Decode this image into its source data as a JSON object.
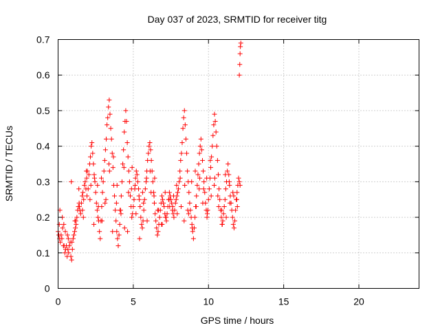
{
  "chart_data": {
    "type": "scatter",
    "title": "Day 037 of 2023, SRMTID for receiver titg",
    "xlabel": "GPS time / hours",
    "ylabel": "SRMTID / TECUs",
    "xlim": [
      0,
      24
    ],
    "ylim": [
      0,
      0.7
    ],
    "xticks": [
      0,
      5,
      10,
      15,
      20
    ],
    "yticks": [
      0,
      0.1,
      0.2,
      0.3,
      0.4,
      0.5,
      0.6,
      0.7
    ],
    "xtick_labels": [
      "0",
      "5",
      "10",
      "15",
      "20"
    ],
    "ytick_labels": [
      "0",
      "0.1",
      "0.2",
      "0.3",
      "0.4",
      "0.5",
      "0.6",
      "0.7"
    ],
    "grid": true,
    "marker": "plus",
    "color": "#ff0000",
    "series": [
      {
        "name": "titg",
        "x": [
          0.0,
          0.1,
          0.2,
          0.3,
          0.4,
          0.5,
          0.6,
          0.7,
          0.8,
          0.9,
          1.0,
          1.1,
          1.2,
          1.3,
          1.4,
          1.5,
          1.6,
          1.7,
          1.8,
          1.9,
          2.0,
          2.1,
          2.2,
          2.3,
          2.4,
          2.5,
          2.6,
          2.7,
          2.8,
          2.9,
          3.0,
          3.1,
          3.2,
          3.3,
          3.4,
          3.5,
          3.6,
          3.7,
          3.8,
          3.9,
          4.0,
          4.1,
          4.2,
          4.3,
          4.4,
          4.5,
          4.6,
          4.7,
          4.8,
          4.9,
          5.0,
          5.1,
          5.2,
          5.3,
          5.4,
          5.5,
          5.6,
          5.7,
          5.8,
          5.9,
          6.0,
          6.1,
          6.2,
          6.3,
          6.4,
          6.5,
          6.6,
          6.7,
          6.8,
          6.9,
          7.0,
          7.1,
          7.2,
          7.3,
          7.4,
          7.5,
          7.6,
          7.7,
          7.8,
          7.9,
          8.0,
          8.1,
          8.2,
          8.3,
          8.4,
          8.5,
          8.6,
          8.7,
          8.8,
          8.9,
          9.0,
          9.1,
          9.2,
          9.3,
          9.4,
          9.5,
          9.6,
          9.7,
          9.8,
          9.9,
          10.0,
          10.1,
          10.2,
          10.3,
          10.4,
          10.5,
          10.6,
          10.7,
          10.8,
          10.9,
          11.0,
          11.1,
          11.2,
          11.3,
          11.4,
          11.5,
          11.6,
          11.7,
          11.8,
          11.9,
          12.0,
          12.1,
          0.05,
          0.15,
          0.25,
          0.35,
          0.45,
          0.55,
          0.65,
          0.75,
          0.85,
          0.95,
          1.05,
          1.15,
          1.25,
          1.35,
          1.45,
          1.55,
          1.65,
          1.75,
          1.85,
          1.95,
          2.05,
          2.15,
          2.25,
          2.35,
          2.45,
          2.55,
          2.65,
          2.75,
          2.85,
          2.95,
          3.05,
          3.15,
          3.25,
          3.35,
          3.45,
          3.55,
          3.65,
          3.75,
          3.85,
          3.95,
          4.05,
          4.15,
          4.25,
          4.35,
          4.45,
          4.55,
          4.65,
          4.75,
          4.85,
          4.95,
          5.05,
          5.15,
          5.25,
          5.35,
          5.45,
          5.55,
          5.65,
          5.75,
          5.85,
          5.95,
          6.05,
          6.15,
          6.25,
          6.35,
          6.45,
          6.55,
          6.65,
          6.75,
          6.85,
          6.95,
          7.05,
          7.15,
          7.25,
          7.35,
          7.45,
          7.55,
          7.65,
          7.75,
          7.85,
          7.95,
          8.05,
          8.15,
          8.25,
          8.35,
          8.45,
          8.55,
          8.65,
          8.75,
          8.85,
          8.95,
          9.05,
          9.15,
          9.25,
          9.35,
          9.45,
          9.55,
          9.65,
          9.75,
          9.85,
          9.95,
          10.05,
          10.15,
          10.25,
          10.35,
          10.45,
          10.55,
          10.65,
          10.75,
          10.85,
          10.95,
          11.05,
          11.15,
          11.25,
          11.35,
          11.45,
          11.55,
          11.65,
          11.75,
          11.85,
          11.95,
          12.05,
          0.12,
          0.38,
          0.62,
          0.88,
          1.12,
          1.38,
          1.62,
          1.88,
          2.12,
          2.38,
          2.62,
          2.88,
          3.12,
          3.38,
          3.62,
          3.88,
          4.12,
          4.38,
          4.62,
          4.88,
          5.12,
          5.38,
          5.62,
          5.88,
          6.12,
          6.38,
          6.62,
          6.88,
          7.12,
          7.38,
          7.62,
          7.88,
          8.12,
          8.38,
          8.62,
          8.88,
          9.12,
          9.38,
          9.62,
          9.88,
          10.12,
          10.38,
          10.62,
          10.88,
          11.12,
          11.38,
          11.62,
          11.88,
          0.08,
          0.28,
          0.48,
          0.68,
          0.92,
          1.18,
          1.42,
          1.68,
          1.92,
          2.18,
          2.42,
          2.68,
          2.92,
          3.18,
          3.42,
          3.68,
          3.92,
          4.18,
          4.42,
          4.68,
          4.92,
          5.18,
          5.42,
          5.68,
          5.92,
          6.18,
          6.42,
          6.68,
          6.92,
          7.18,
          7.42,
          7.68,
          7.92,
          8.18,
          8.42,
          8.68,
          8.92,
          9.18,
          9.42,
          9.68,
          9.92,
          10.18,
          10.42,
          10.68,
          10.92,
          11.18,
          11.42,
          11.68,
          11.92,
          12.05,
          12.08,
          12.1,
          12.12,
          12.15
        ],
        "y": [
          0.16,
          0.14,
          0.15,
          0.17,
          0.12,
          0.11,
          0.09,
          0.1,
          0.13,
          0.08,
          0.14,
          0.16,
          0.18,
          0.22,
          0.24,
          0.21,
          0.26,
          0.25,
          0.3,
          0.31,
          0.28,
          0.35,
          0.4,
          0.38,
          0.32,
          0.27,
          0.22,
          0.19,
          0.14,
          0.23,
          0.3,
          0.36,
          0.42,
          0.48,
          0.53,
          0.45,
          0.38,
          0.29,
          0.22,
          0.16,
          0.12,
          0.18,
          0.26,
          0.35,
          0.44,
          0.5,
          0.41,
          0.33,
          0.26,
          0.2,
          0.23,
          0.28,
          0.33,
          0.3,
          0.25,
          0.2,
          0.17,
          0.22,
          0.28,
          0.33,
          0.38,
          0.41,
          0.36,
          0.3,
          0.24,
          0.19,
          0.15,
          0.18,
          0.22,
          0.26,
          0.24,
          0.21,
          0.19,
          0.23,
          0.27,
          0.25,
          0.22,
          0.2,
          0.24,
          0.26,
          0.28,
          0.33,
          0.38,
          0.45,
          0.5,
          0.42,
          0.33,
          0.27,
          0.22,
          0.18,
          0.14,
          0.2,
          0.26,
          0.32,
          0.38,
          0.42,
          0.36,
          0.3,
          0.24,
          0.2,
          0.25,
          0.31,
          0.37,
          0.43,
          0.49,
          0.44,
          0.36,
          0.28,
          0.22,
          0.18,
          0.21,
          0.25,
          0.3,
          0.35,
          0.29,
          0.24,
          0.2,
          0.17,
          0.22,
          0.27,
          0.31,
          0.29,
          0.15,
          0.13,
          0.14,
          0.12,
          0.1,
          0.12,
          0.11,
          0.12,
          0.09,
          0.11,
          0.15,
          0.17,
          0.2,
          0.23,
          0.22,
          0.24,
          0.27,
          0.29,
          0.28,
          0.33,
          0.32,
          0.37,
          0.41,
          0.35,
          0.3,
          0.24,
          0.2,
          0.16,
          0.19,
          0.27,
          0.33,
          0.39,
          0.46,
          0.51,
          0.49,
          0.42,
          0.34,
          0.26,
          0.19,
          0.14,
          0.15,
          0.22,
          0.3,
          0.39,
          0.47,
          0.47,
          0.37,
          0.3,
          0.23,
          0.21,
          0.25,
          0.31,
          0.32,
          0.28,
          0.23,
          0.18,
          0.19,
          0.25,
          0.3,
          0.36,
          0.4,
          0.39,
          0.33,
          0.27,
          0.21,
          0.17,
          0.16,
          0.2,
          0.24,
          0.25,
          0.23,
          0.2,
          0.21,
          0.25,
          0.26,
          0.24,
          0.21,
          0.22,
          0.25,
          0.27,
          0.3,
          0.36,
          0.41,
          0.48,
          0.46,
          0.38,
          0.3,
          0.24,
          0.2,
          0.16,
          0.17,
          0.23,
          0.29,
          0.35,
          0.4,
          0.39,
          0.33,
          0.27,
          0.22,
          0.22,
          0.28,
          0.34,
          0.4,
          0.46,
          0.47,
          0.4,
          0.32,
          0.25,
          0.2,
          0.19,
          0.23,
          0.28,
          0.33,
          0.32,
          0.26,
          0.22,
          0.18,
          0.19,
          0.25,
          0.29,
          0.3,
          0.22,
          0.18,
          0.15,
          0.3,
          0.19,
          0.28,
          0.22,
          0.33,
          0.25,
          0.18,
          0.29,
          0.31,
          0.24,
          0.35,
          0.16,
          0.24,
          0.22,
          0.34,
          0.16,
          0.28,
          0.29,
          0.26,
          0.27,
          0.31,
          0.33,
          0.26,
          0.22,
          0.18,
          0.27,
          0.25,
          0.23,
          0.29,
          0.31,
          0.19,
          0.22,
          0.3,
          0.33,
          0.28,
          0.24,
          0.31,
          0.36,
          0.29,
          0.26,
          0.22,
          0.32,
          0.3,
          0.27,
          0.25,
          0.18,
          0.2,
          0.16,
          0.14,
          0.13,
          0.19,
          0.23,
          0.2,
          0.26,
          0.29,
          0.31,
          0.23,
          0.19,
          0.25,
          0.33,
          0.37,
          0.29,
          0.21,
          0.17,
          0.27,
          0.34,
          0.21,
          0.14,
          0.24,
          0.19,
          0.27,
          0.31,
          0.22,
          0.18,
          0.2,
          0.23,
          0.26,
          0.21,
          0.23,
          0.29,
          0.21,
          0.17,
          0.23,
          0.31,
          0.28,
          0.21,
          0.26,
          0.31,
          0.23,
          0.18,
          0.2,
          0.24,
          0.26,
          0.23,
          0.6,
          0.63,
          0.66,
          0.68,
          0.69
        ]
      }
    ]
  }
}
